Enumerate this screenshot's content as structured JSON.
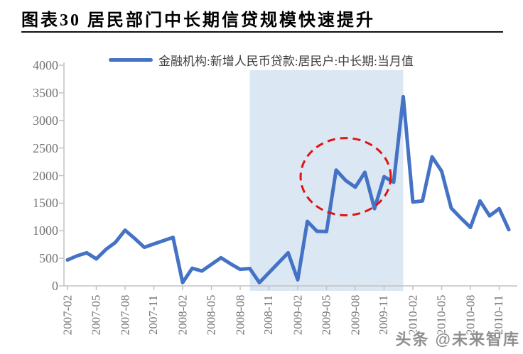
{
  "title": {
    "text": "图表30 居民部门中长期信贷规模快速提升"
  },
  "legend": {
    "label": "金融机构:新增人民币贷款:居民户:中长期:当月值",
    "marker_color": "#4472c4"
  },
  "watermark": {
    "text": "头条 @未来智库"
  },
  "chart_data": {
    "type": "line",
    "title": "图表30 居民部门中长期信贷规模快速提升",
    "xlabel": "",
    "ylabel": "",
    "ylim": [
      0,
      4000
    ],
    "grid": false,
    "legend_position": "top",
    "y_ticks": [
      0,
      500,
      1000,
      1500,
      2000,
      2500,
      3000,
      3500,
      4000
    ],
    "x_tick_labels": [
      "2007-02",
      "2007-05",
      "2007-08",
      "2007-11",
      "2008-02",
      "2008-05",
      "2008-08",
      "2008-11",
      "2009-02",
      "2009-05",
      "2009-08",
      "2009-11",
      "2010-02",
      "2010-05",
      "2010-08",
      "2010-11"
    ],
    "categories": [
      "2007-02",
      "2007-03",
      "2007-04",
      "2007-05",
      "2007-06",
      "2007-07",
      "2007-08",
      "2007-09",
      "2007-10",
      "2007-11",
      "2007-12",
      "2008-01",
      "2008-02",
      "2008-03",
      "2008-04",
      "2008-05",
      "2008-06",
      "2008-07",
      "2008-08",
      "2008-09",
      "2008-10",
      "2008-11",
      "2008-12",
      "2009-01",
      "2009-02",
      "2009-03",
      "2009-04",
      "2009-05",
      "2009-06",
      "2009-07",
      "2009-08",
      "2009-09",
      "2009-10",
      "2009-11",
      "2009-12",
      "2010-01",
      "2010-02",
      "2010-03",
      "2010-04",
      "2010-05",
      "2010-06",
      "2010-07",
      "2010-08",
      "2010-09",
      "2010-10",
      "2010-11",
      "2010-12"
    ],
    "series": [
      {
        "name": "金融机构:新增人民币贷款:居民户:中长期:当月值",
        "color": "#4472c4",
        "values": [
          470,
          545,
          600,
          490,
          660,
          790,
          1010,
          860,
          700,
          760,
          820,
          880,
          60,
          320,
          270,
          390,
          510,
          400,
          300,
          315,
          60,
          240,
          420,
          600,
          110,
          1170,
          990,
          985,
          2100,
          1910,
          1790,
          2060,
          1400,
          1980,
          1880,
          3430,
          1520,
          1540,
          2340,
          2080,
          1410,
          1230,
          1060,
          1540,
          1270,
          1400,
          1020
        ]
      }
    ],
    "highlight_band": {
      "from_month": "2008-09",
      "to_month": "2010-01",
      "color": "#dce7f4"
    },
    "annotation_ellipse": {
      "center_month": "2009-07",
      "center_value": 1980,
      "radius_months": 4.7,
      "radius_value": 700,
      "color": "#e01212",
      "style": "dashed"
    }
  }
}
